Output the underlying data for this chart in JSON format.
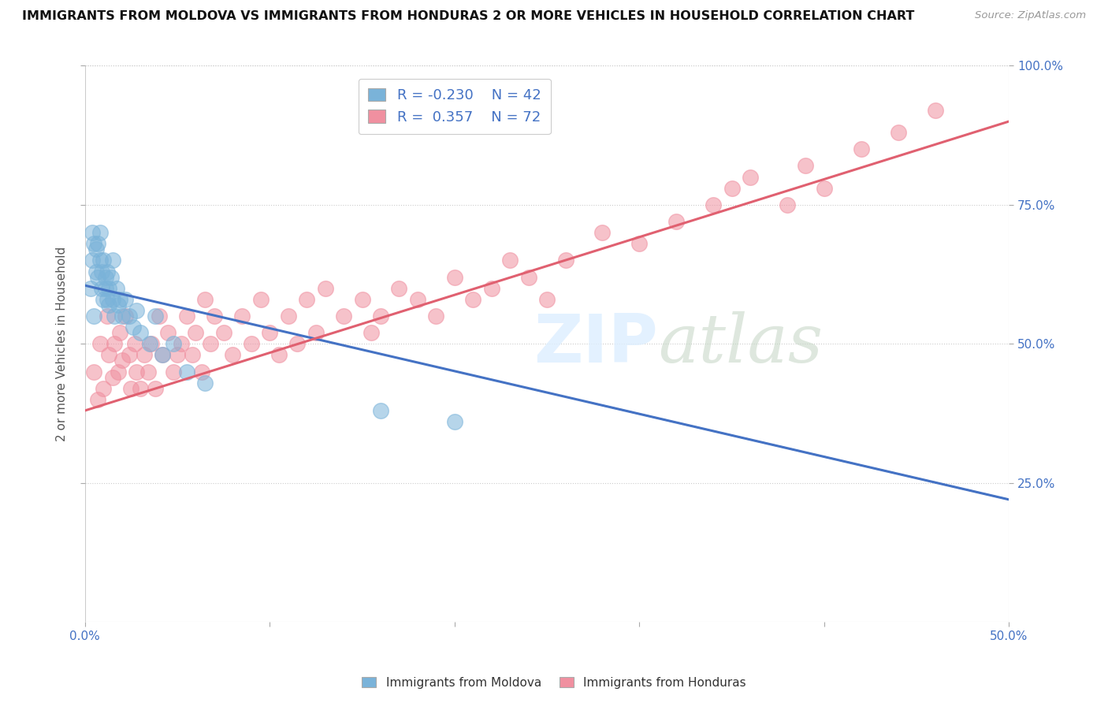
{
  "title": "IMMIGRANTS FROM MOLDOVA VS IMMIGRANTS FROM HONDURAS 2 OR MORE VEHICLES IN HOUSEHOLD CORRELATION CHART",
  "source": "Source: ZipAtlas.com",
  "ylabel_label": "2 or more Vehicles in Household",
  "legend_moldova": "Immigrants from Moldova",
  "legend_honduras": "Immigrants from Honduras",
  "R_moldova": -0.23,
  "N_moldova": 42,
  "R_honduras": 0.357,
  "N_honduras": 72,
  "moldova_color": "#7ab3d9",
  "honduras_color": "#f090a0",
  "moldova_line_color": "#4472c4",
  "honduras_line_color": "#e06070",
  "xlim": [
    0.0,
    0.5
  ],
  "ylim": [
    0.0,
    1.0
  ],
  "moldova_line_x0": 0.0,
  "moldova_line_y0": 0.605,
  "moldova_line_x1": 0.5,
  "moldova_line_y1": 0.22,
  "honduras_line_x0": 0.0,
  "honduras_line_y0": 0.38,
  "honduras_line_x1": 0.5,
  "honduras_line_y1": 0.9,
  "moldova_pts_x": [
    0.003,
    0.004,
    0.004,
    0.005,
    0.005,
    0.006,
    0.006,
    0.007,
    0.007,
    0.008,
    0.008,
    0.009,
    0.009,
    0.01,
    0.01,
    0.011,
    0.011,
    0.012,
    0.012,
    0.013,
    0.013,
    0.014,
    0.015,
    0.015,
    0.016,
    0.017,
    0.018,
    0.019,
    0.02,
    0.022,
    0.024,
    0.026,
    0.028,
    0.03,
    0.035,
    0.038,
    0.042,
    0.048,
    0.055,
    0.065,
    0.16,
    0.2
  ],
  "moldova_pts_y": [
    0.6,
    0.65,
    0.7,
    0.55,
    0.68,
    0.63,
    0.67,
    0.62,
    0.68,
    0.7,
    0.65,
    0.6,
    0.63,
    0.58,
    0.65,
    0.6,
    0.62,
    0.58,
    0.63,
    0.6,
    0.57,
    0.62,
    0.58,
    0.65,
    0.55,
    0.6,
    0.57,
    0.58,
    0.55,
    0.58,
    0.55,
    0.53,
    0.56,
    0.52,
    0.5,
    0.55,
    0.48,
    0.5,
    0.45,
    0.43,
    0.38,
    0.36
  ],
  "honduras_pts_x": [
    0.005,
    0.007,
    0.008,
    0.01,
    0.012,
    0.013,
    0.015,
    0.016,
    0.018,
    0.019,
    0.02,
    0.022,
    0.024,
    0.025,
    0.027,
    0.028,
    0.03,
    0.032,
    0.034,
    0.036,
    0.038,
    0.04,
    0.042,
    0.045,
    0.048,
    0.05,
    0.052,
    0.055,
    0.058,
    0.06,
    0.063,
    0.065,
    0.068,
    0.07,
    0.075,
    0.08,
    0.085,
    0.09,
    0.095,
    0.1,
    0.105,
    0.11,
    0.115,
    0.12,
    0.125,
    0.13,
    0.14,
    0.15,
    0.155,
    0.16,
    0.17,
    0.18,
    0.19,
    0.2,
    0.21,
    0.22,
    0.23,
    0.24,
    0.25,
    0.26,
    0.28,
    0.3,
    0.32,
    0.34,
    0.35,
    0.36,
    0.38,
    0.39,
    0.4,
    0.42,
    0.44,
    0.46
  ],
  "honduras_pts_y": [
    0.45,
    0.4,
    0.5,
    0.42,
    0.55,
    0.48,
    0.44,
    0.5,
    0.45,
    0.52,
    0.47,
    0.55,
    0.48,
    0.42,
    0.5,
    0.45,
    0.42,
    0.48,
    0.45,
    0.5,
    0.42,
    0.55,
    0.48,
    0.52,
    0.45,
    0.48,
    0.5,
    0.55,
    0.48,
    0.52,
    0.45,
    0.58,
    0.5,
    0.55,
    0.52,
    0.48,
    0.55,
    0.5,
    0.58,
    0.52,
    0.48,
    0.55,
    0.5,
    0.58,
    0.52,
    0.6,
    0.55,
    0.58,
    0.52,
    0.55,
    0.6,
    0.58,
    0.55,
    0.62,
    0.58,
    0.6,
    0.65,
    0.62,
    0.58,
    0.65,
    0.7,
    0.68,
    0.72,
    0.75,
    0.78,
    0.8,
    0.75,
    0.82,
    0.78,
    0.85,
    0.88,
    0.92
  ],
  "grid_yticks": [
    0.25,
    0.5,
    0.75,
    1.0
  ],
  "xtick_positions": [
    0.0,
    0.1,
    0.2,
    0.3,
    0.4,
    0.5
  ]
}
